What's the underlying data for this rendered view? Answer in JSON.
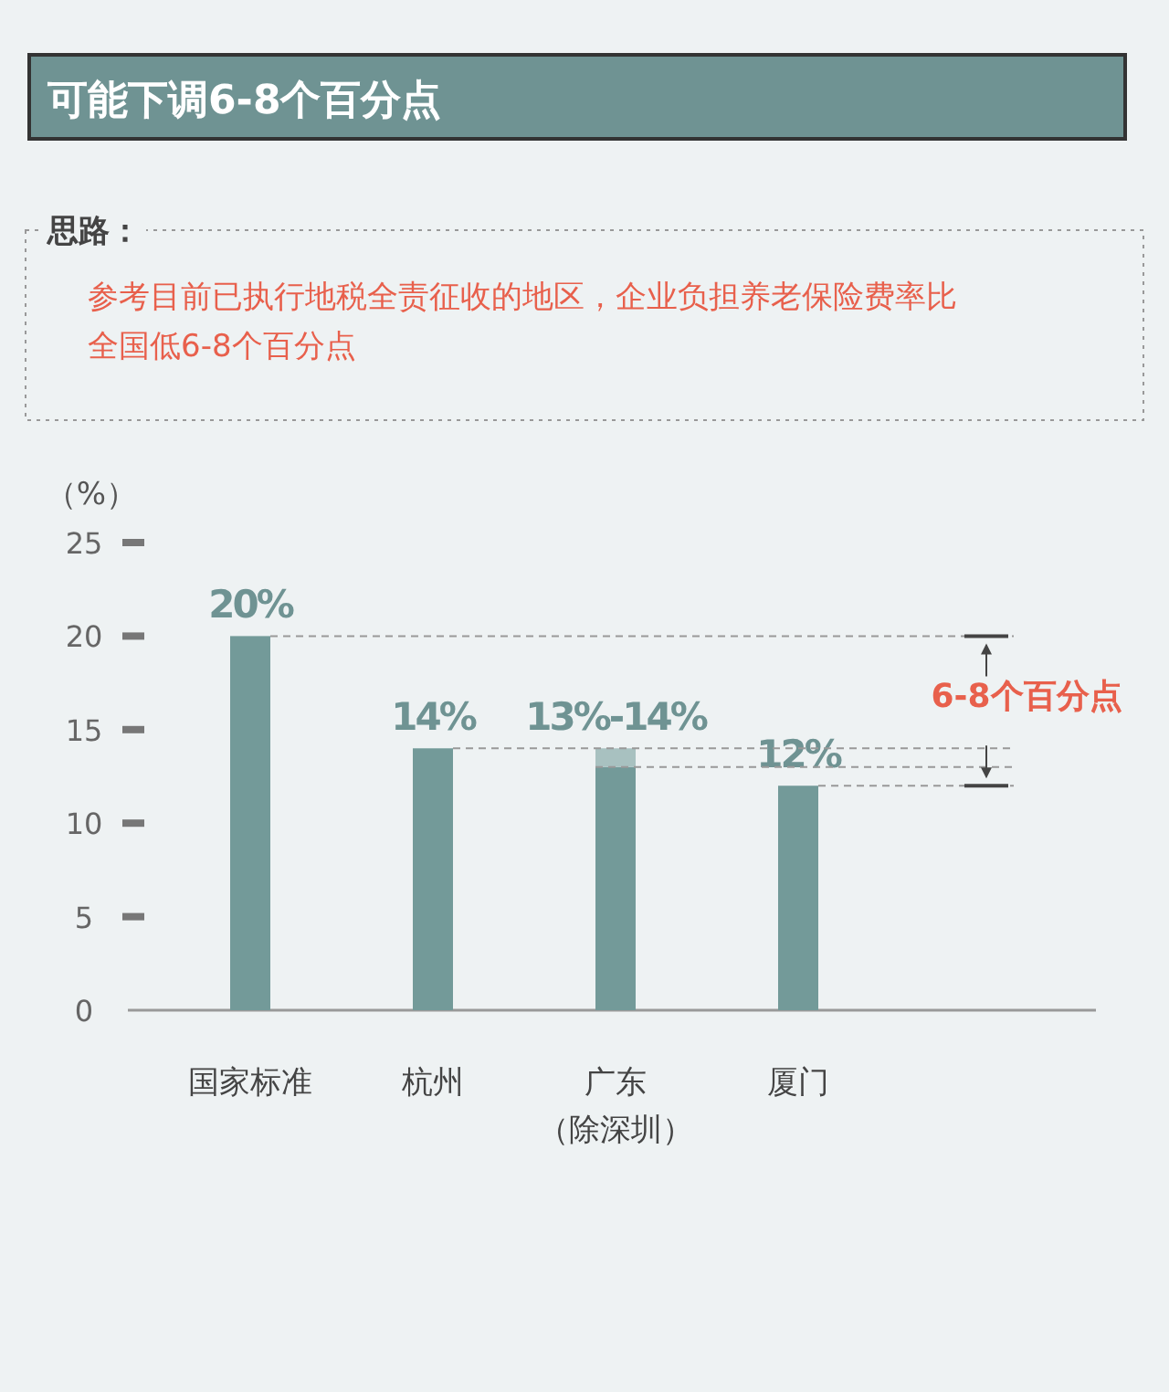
{
  "chart_data": {
    "type": "bar",
    "stacked": true,
    "title": "可能下调6-8个百分点",
    "ylabel": "（%）",
    "categories": [
      "国家标准",
      "杭州",
      "广东（除深圳）",
      "厦门"
    ],
    "series": [
      {
        "color": "#739a99",
        "values": [
          20,
          14,
          13,
          12
        ],
        "value_labels": [
          "20%",
          "14%",
          "13%-14%",
          "12%"
        ]
      },
      {
        "color": "#a8c1c0",
        "values": [
          null,
          null,
          1,
          null
        ]
      }
    ],
    "ylim": [
      0,
      25
    ],
    "yticks": [
      0,
      5,
      10,
      15,
      20,
      25
    ],
    "ref_lines": [
      {
        "axis": "y",
        "value": 20,
        "color": "#999999",
        "line_style": "dashed"
      },
      {
        "axis": "y",
        "value": 14,
        "color": "#999999",
        "line_style": "dashed"
      },
      {
        "axis": "y",
        "value": 13,
        "color": "#999999",
        "line_style": "dashed"
      },
      {
        "axis": "y",
        "value": 12,
        "color": "#999999",
        "line_style": "dashed"
      }
    ],
    "annotations": [
      "思路：",
      "参考目前已执行地税全责征收的地区，企业负担养老保险费率比全国低6-8个百分点",
      "6-8个百分点"
    ]
  }
}
